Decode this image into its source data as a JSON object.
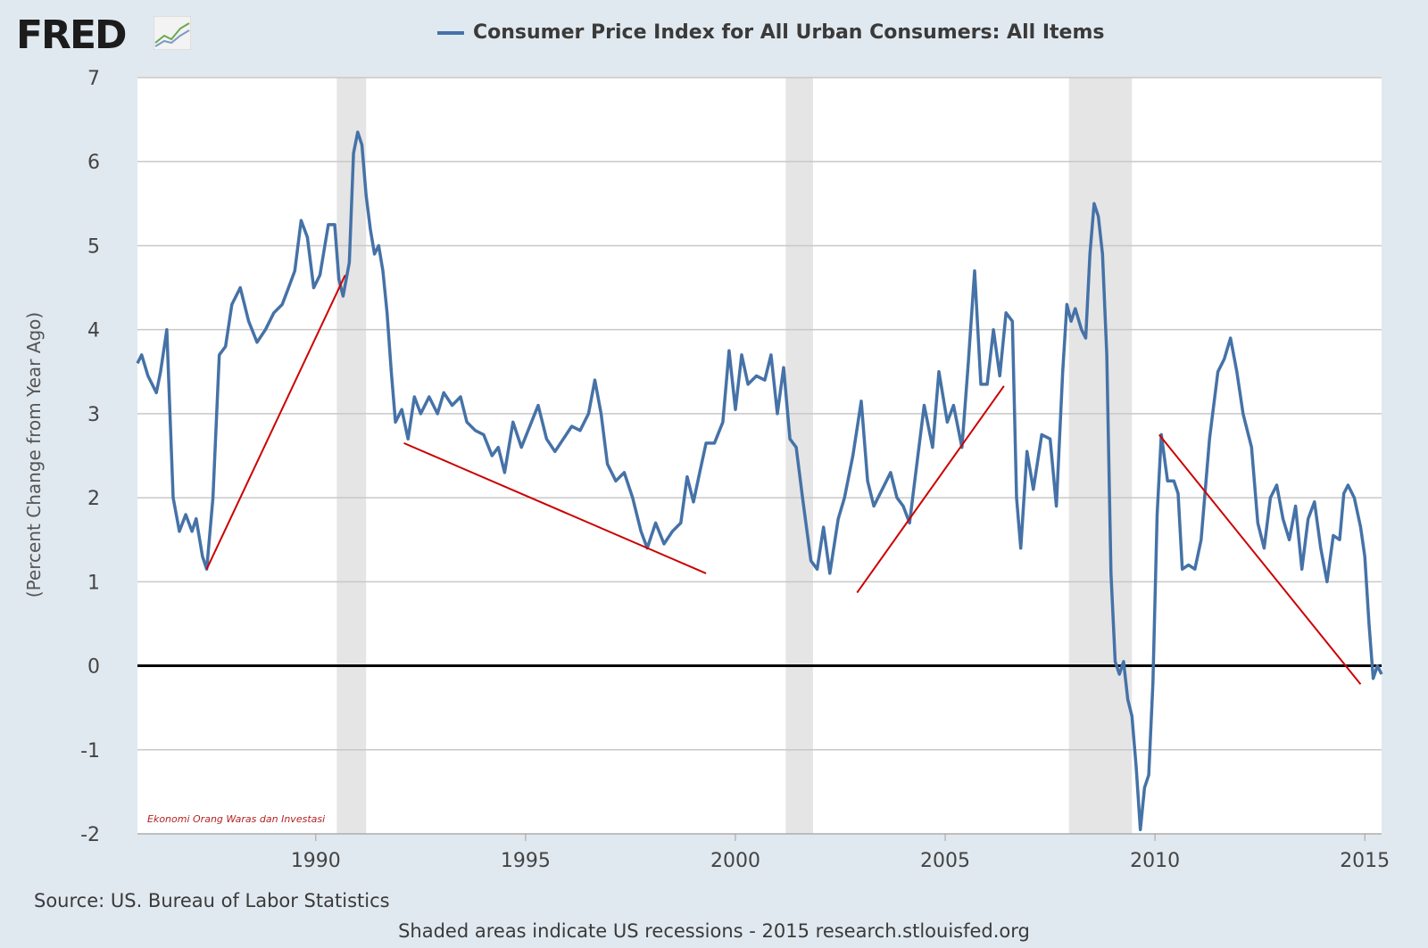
{
  "header": {
    "logo_text": "FRED",
    "legend_label": "Consumer Price Index for All Urban Consumers: All Items"
  },
  "chart_data": {
    "type": "line",
    "title": "Consumer Price Index for All Urban Consumers: All Items",
    "ylabel": "(Percent Change from Year Ago)",
    "xlabel": "",
    "xlim": [
      1985.75,
      2015.4
    ],
    "ylim": [
      -2,
      7
    ],
    "y_ticks": [
      -2,
      -1,
      0,
      1,
      2,
      3,
      4,
      5,
      6,
      7
    ],
    "x_ticks": [
      1990,
      1995,
      2000,
      2005,
      2010,
      2015
    ],
    "grid": true,
    "recessions": [
      [
        1990.5,
        1991.2
      ],
      [
        2001.2,
        2001.85
      ],
      [
        2007.95,
        2009.45
      ]
    ],
    "watermark": "Ekonomi Orang Waras dan Investasi",
    "series": [
      {
        "name": "Consumer Price Index for All Urban Consumers: All Items",
        "color": "#4572a7",
        "points": [
          [
            1985.75,
            3.6
          ],
          [
            1985.85,
            3.7
          ],
          [
            1986.0,
            3.45
          ],
          [
            1986.2,
            3.25
          ],
          [
            1986.3,
            3.5
          ],
          [
            1986.45,
            4.0
          ],
          [
            1986.6,
            2.0
          ],
          [
            1986.75,
            1.6
          ],
          [
            1986.9,
            1.8
          ],
          [
            1987.05,
            1.6
          ],
          [
            1987.15,
            1.75
          ],
          [
            1987.3,
            1.3
          ],
          [
            1987.4,
            1.15
          ],
          [
            1987.55,
            2.0
          ],
          [
            1987.7,
            3.7
          ],
          [
            1987.85,
            3.8
          ],
          [
            1988.0,
            4.3
          ],
          [
            1988.2,
            4.5
          ],
          [
            1988.4,
            4.1
          ],
          [
            1988.6,
            3.85
          ],
          [
            1988.8,
            4.0
          ],
          [
            1989.0,
            4.2
          ],
          [
            1989.2,
            4.3
          ],
          [
            1989.35,
            4.5
          ],
          [
            1989.5,
            4.7
          ],
          [
            1989.65,
            5.3
          ],
          [
            1989.8,
            5.1
          ],
          [
            1989.95,
            4.5
          ],
          [
            1990.1,
            4.65
          ],
          [
            1990.3,
            5.25
          ],
          [
            1990.45,
            5.25
          ],
          [
            1990.55,
            4.6
          ],
          [
            1990.65,
            4.4
          ],
          [
            1990.8,
            4.8
          ],
          [
            1990.9,
            6.1
          ],
          [
            1991.0,
            6.35
          ],
          [
            1991.1,
            6.2
          ],
          [
            1991.2,
            5.6
          ],
          [
            1991.3,
            5.2
          ],
          [
            1991.4,
            4.9
          ],
          [
            1991.5,
            5.0
          ],
          [
            1991.6,
            4.7
          ],
          [
            1991.7,
            4.2
          ],
          [
            1991.8,
            3.5
          ],
          [
            1991.9,
            2.9
          ],
          [
            1992.05,
            3.05
          ],
          [
            1992.2,
            2.7
          ],
          [
            1992.35,
            3.2
          ],
          [
            1992.5,
            3.0
          ],
          [
            1992.7,
            3.2
          ],
          [
            1992.9,
            3.0
          ],
          [
            1993.05,
            3.25
          ],
          [
            1993.25,
            3.1
          ],
          [
            1993.45,
            3.2
          ],
          [
            1993.6,
            2.9
          ],
          [
            1993.8,
            2.8
          ],
          [
            1994.0,
            2.75
          ],
          [
            1994.2,
            2.5
          ],
          [
            1994.35,
            2.6
          ],
          [
            1994.5,
            2.3
          ],
          [
            1994.7,
            2.9
          ],
          [
            1994.9,
            2.6
          ],
          [
            1995.1,
            2.85
          ],
          [
            1995.3,
            3.1
          ],
          [
            1995.5,
            2.7
          ],
          [
            1995.7,
            2.55
          ],
          [
            1995.9,
            2.7
          ],
          [
            1996.1,
            2.85
          ],
          [
            1996.3,
            2.8
          ],
          [
            1996.5,
            3.0
          ],
          [
            1996.65,
            3.4
          ],
          [
            1996.8,
            3.0
          ],
          [
            1996.95,
            2.4
          ],
          [
            1997.15,
            2.2
          ],
          [
            1997.35,
            2.3
          ],
          [
            1997.55,
            2.0
          ],
          [
            1997.75,
            1.6
          ],
          [
            1997.9,
            1.4
          ],
          [
            1998.1,
            1.7
          ],
          [
            1998.3,
            1.45
          ],
          [
            1998.5,
            1.6
          ],
          [
            1998.7,
            1.7
          ],
          [
            1998.85,
            2.25
          ],
          [
            1999.0,
            1.95
          ],
          [
            1999.15,
            2.3
          ],
          [
            1999.3,
            2.65
          ],
          [
            1999.5,
            2.65
          ],
          [
            1999.7,
            2.9
          ],
          [
            1999.85,
            3.75
          ],
          [
            2000.0,
            3.05
          ],
          [
            2000.15,
            3.7
          ],
          [
            2000.3,
            3.35
          ],
          [
            2000.5,
            3.45
          ],
          [
            2000.7,
            3.4
          ],
          [
            2000.85,
            3.7
          ],
          [
            2001.0,
            3.0
          ],
          [
            2001.15,
            3.55
          ],
          [
            2001.3,
            2.7
          ],
          [
            2001.45,
            2.6
          ],
          [
            2001.6,
            2.0
          ],
          [
            2001.8,
            1.25
          ],
          [
            2001.95,
            1.15
          ],
          [
            2002.1,
            1.65
          ],
          [
            2002.25,
            1.1
          ],
          [
            2002.45,
            1.75
          ],
          [
            2002.6,
            2.0
          ],
          [
            2002.8,
            2.5
          ],
          [
            2003.0,
            3.15
          ],
          [
            2003.15,
            2.2
          ],
          [
            2003.3,
            1.9
          ],
          [
            2003.5,
            2.1
          ],
          [
            2003.7,
            2.3
          ],
          [
            2003.85,
            2.0
          ],
          [
            2004.0,
            1.9
          ],
          [
            2004.15,
            1.7
          ],
          [
            2004.3,
            2.3
          ],
          [
            2004.5,
            3.1
          ],
          [
            2004.7,
            2.6
          ],
          [
            2004.85,
            3.5
          ],
          [
            2005.05,
            2.9
          ],
          [
            2005.2,
            3.1
          ],
          [
            2005.4,
            2.6
          ],
          [
            2005.55,
            3.6
          ],
          [
            2005.7,
            4.7
          ],
          [
            2005.85,
            3.35
          ],
          [
            2006.0,
            3.35
          ],
          [
            2006.15,
            4.0
          ],
          [
            2006.3,
            3.45
          ],
          [
            2006.45,
            4.2
          ],
          [
            2006.6,
            4.1
          ],
          [
            2006.7,
            2.0
          ],
          [
            2006.8,
            1.4
          ],
          [
            2006.95,
            2.55
          ],
          [
            2007.1,
            2.1
          ],
          [
            2007.3,
            2.75
          ],
          [
            2007.5,
            2.7
          ],
          [
            2007.65,
            1.9
          ],
          [
            2007.8,
            3.5
          ],
          [
            2007.9,
            4.3
          ],
          [
            2008.0,
            4.1
          ],
          [
            2008.1,
            4.25
          ],
          [
            2008.25,
            4.0
          ],
          [
            2008.35,
            3.9
          ],
          [
            2008.45,
            4.9
          ],
          [
            2008.55,
            5.5
          ],
          [
            2008.65,
            5.35
          ],
          [
            2008.75,
            4.9
          ],
          [
            2008.85,
            3.7
          ],
          [
            2008.95,
            1.1
          ],
          [
            2009.05,
            0.05
          ],
          [
            2009.15,
            -0.1
          ],
          [
            2009.25,
            0.05
          ],
          [
            2009.35,
            -0.4
          ],
          [
            2009.45,
            -0.6
          ],
          [
            2009.55,
            -1.2
          ],
          [
            2009.65,
            -1.95
          ],
          [
            2009.75,
            -1.45
          ],
          [
            2009.85,
            -1.3
          ],
          [
            2009.95,
            -0.2
          ],
          [
            2010.05,
            1.8
          ],
          [
            2010.15,
            2.75
          ],
          [
            2010.3,
            2.2
          ],
          [
            2010.45,
            2.2
          ],
          [
            2010.55,
            2.05
          ],
          [
            2010.65,
            1.15
          ],
          [
            2010.8,
            1.2
          ],
          [
            2010.95,
            1.15
          ],
          [
            2011.1,
            1.5
          ],
          [
            2011.3,
            2.7
          ],
          [
            2011.5,
            3.5
          ],
          [
            2011.65,
            3.65
          ],
          [
            2011.8,
            3.9
          ],
          [
            2011.95,
            3.5
          ],
          [
            2012.1,
            3.0
          ],
          [
            2012.3,
            2.6
          ],
          [
            2012.45,
            1.7
          ],
          [
            2012.6,
            1.4
          ],
          [
            2012.75,
            2.0
          ],
          [
            2012.9,
            2.15
          ],
          [
            2013.05,
            1.75
          ],
          [
            2013.2,
            1.5
          ],
          [
            2013.35,
            1.9
          ],
          [
            2013.5,
            1.15
          ],
          [
            2013.65,
            1.75
          ],
          [
            2013.8,
            1.95
          ],
          [
            2013.95,
            1.4
          ],
          [
            2014.1,
            1.0
          ],
          [
            2014.25,
            1.55
          ],
          [
            2014.4,
            1.5
          ],
          [
            2014.5,
            2.05
          ],
          [
            2014.6,
            2.15
          ],
          [
            2014.75,
            2.0
          ],
          [
            2014.9,
            1.65
          ],
          [
            2015.0,
            1.3
          ],
          [
            2015.1,
            0.5
          ],
          [
            2015.2,
            -0.15
          ],
          [
            2015.3,
            0.0
          ],
          [
            2015.4,
            -0.1
          ]
        ]
      }
    ],
    "annotations": [
      {
        "type": "trendline",
        "color": "#cc0000",
        "from": [
          1987.4,
          1.15
        ],
        "to": [
          1990.7,
          4.65
        ]
      },
      {
        "type": "trendline",
        "color": "#cc0000",
        "from": [
          1992.1,
          2.65
        ],
        "to": [
          1999.3,
          1.1
        ]
      },
      {
        "type": "trendline",
        "color": "#cc0000",
        "from": [
          2002.9,
          0.87
        ],
        "to": [
          2006.4,
          3.33
        ]
      },
      {
        "type": "trendline",
        "color": "#cc0000",
        "from": [
          2010.1,
          2.75
        ],
        "to": [
          2014.9,
          -0.22
        ]
      }
    ]
  },
  "footer": {
    "source": "Source: US. Bureau of Labor Statistics",
    "note": "Shaded areas indicate US recessions - 2015 research.stlouisfed.org"
  }
}
